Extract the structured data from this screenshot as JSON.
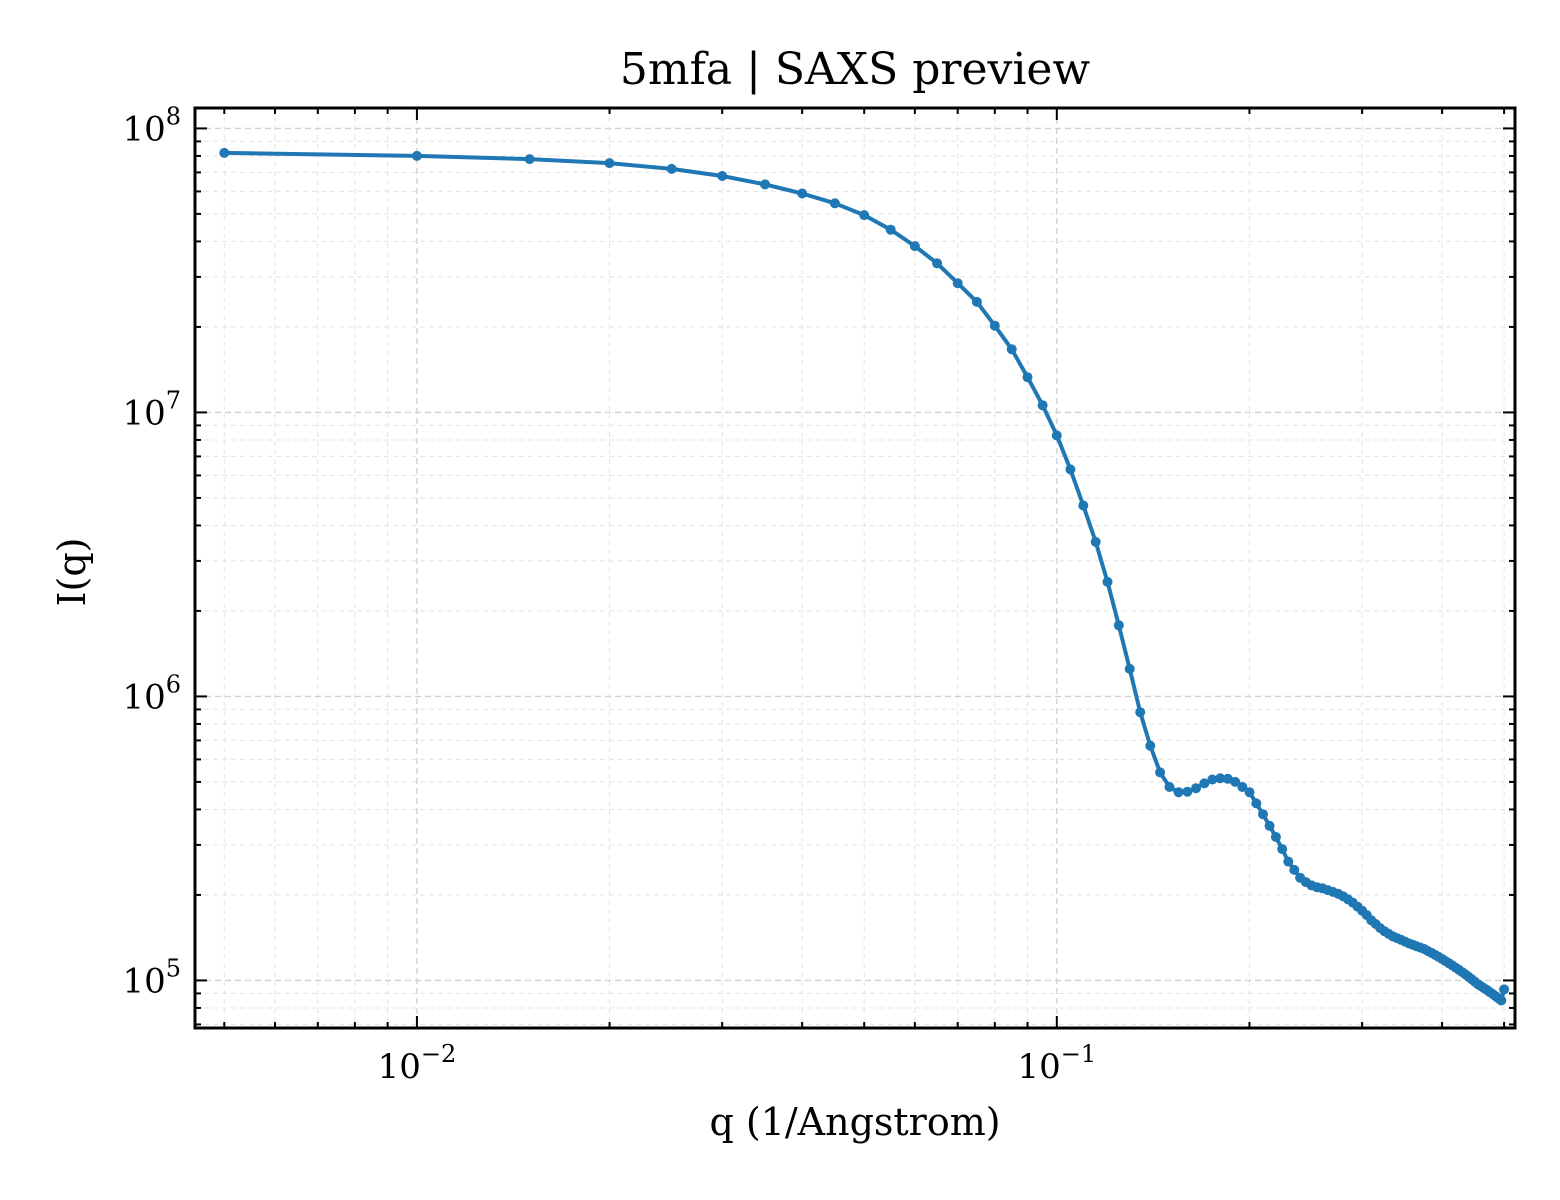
{
  "chart_data": {
    "type": "line",
    "title": "5mfa | SAXS preview",
    "xlabel": "q (1/Angstrom)",
    "ylabel": "I(q)",
    "xscale": "log",
    "yscale": "log",
    "xlim": [
      0.0045,
      0.52
    ],
    "ylim": [
      68000,
      118000000
    ],
    "grid": true,
    "colors": {
      "line": "#1f77b4"
    },
    "x_ticks": [
      {
        "value": 0.01,
        "base": "10",
        "exp": "−2"
      },
      {
        "value": 0.1,
        "base": "10",
        "exp": "−1"
      }
    ],
    "y_ticks": [
      {
        "value": 100000,
        "base": "10",
        "exp": "5"
      },
      {
        "value": 1000000,
        "base": "10",
        "exp": "6"
      },
      {
        "value": 10000000,
        "base": "10",
        "exp": "7"
      },
      {
        "value": 100000000,
        "base": "10",
        "exp": "8"
      }
    ],
    "series": [
      {
        "x": [
          0.005,
          0.01,
          0.015,
          0.02,
          0.025,
          0.03,
          0.035,
          0.04,
          0.045,
          0.05,
          0.055,
          0.06,
          0.065,
          0.07,
          0.075,
          0.08,
          0.085,
          0.09,
          0.095,
          0.1,
          0.105,
          0.11,
          0.115,
          0.12,
          0.125,
          0.13,
          0.135,
          0.14,
          0.145,
          0.15,
          0.155,
          0.16,
          0.165,
          0.17,
          0.175,
          0.18,
          0.185,
          0.19,
          0.195,
          0.2,
          0.205,
          0.21,
          0.215,
          0.22,
          0.225,
          0.23,
          0.235,
          0.24,
          0.245,
          0.25,
          0.255,
          0.26,
          0.265,
          0.27,
          0.275,
          0.28,
          0.285,
          0.29,
          0.295,
          0.3,
          0.305,
          0.31,
          0.315,
          0.32,
          0.325,
          0.33,
          0.335,
          0.34,
          0.345,
          0.35,
          0.355,
          0.36,
          0.365,
          0.37,
          0.375,
          0.38,
          0.385,
          0.39,
          0.395,
          0.4,
          0.405,
          0.41,
          0.415,
          0.42,
          0.425,
          0.43,
          0.435,
          0.44,
          0.445,
          0.45,
          0.455,
          0.46,
          0.465,
          0.47,
          0.475,
          0.48,
          0.485,
          0.49,
          0.495,
          0.5
        ],
        "y": [
          82000000,
          80000000,
          78000000,
          75500000,
          72000000,
          68000000,
          63500000,
          59000000,
          54500000,
          49500000,
          44000000,
          38500000,
          33500000,
          28500000,
          24500000,
          20200000,
          16700000,
          13300000,
          10600000,
          8300000,
          6300000,
          4700000,
          3500000,
          2530000,
          1780000,
          1250000,
          880000,
          670000,
          540000,
          480000,
          460000,
          462000,
          475000,
          494000,
          510000,
          515000,
          513000,
          500000,
          480000,
          460000,
          420000,
          385000,
          350000,
          320000,
          290000,
          262000,
          245000,
          230000,
          222000,
          216000,
          213000,
          211000,
          208000,
          205000,
          202000,
          198000,
          193000,
          188000,
          182000,
          176000,
          170000,
          163000,
          158000,
          153000,
          149000,
          146000,
          143000,
          141000,
          139000,
          137000,
          135000,
          133500,
          132000,
          130500,
          129000,
          127000,
          125000,
          123000,
          121000,
          119000,
          117000,
          115000,
          113000,
          111000,
          109000,
          107000,
          105000,
          103000,
          101000,
          99000,
          97000,
          95500,
          94000,
          92500,
          91000,
          89500,
          88000,
          86500,
          85000,
          93000
        ]
      }
    ]
  }
}
